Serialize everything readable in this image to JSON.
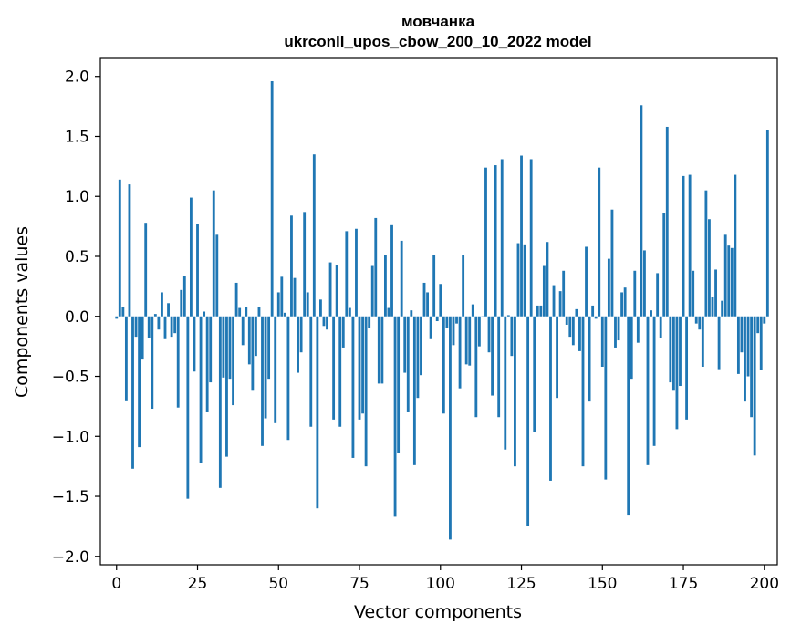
{
  "chart_data": {
    "type": "bar",
    "title_line1": "мовчанка",
    "title_line2": "ukrconll_upos_cbow_200_10_2022 model",
    "xlabel": "Vector components",
    "ylabel": "Components values",
    "xlim": [
      -5,
      204
    ],
    "ylim": [
      -2.07,
      2.15
    ],
    "xticks": [
      0,
      25,
      50,
      75,
      100,
      125,
      150,
      175,
      200
    ],
    "xtick_labels": [
      "0",
      "25",
      "50",
      "75",
      "100",
      "125",
      "150",
      "175",
      "200"
    ],
    "yticks": [
      2.0,
      1.5,
      1.0,
      0.5,
      0.0,
      -0.5,
      -1.0,
      -1.5,
      -2.0
    ],
    "ytick_labels": [
      "2.0",
      "1.5",
      "1.0",
      "0.5",
      "0.0",
      "−0.5",
      "−1.0",
      "−1.5",
      "−2.0"
    ],
    "bar_color": "#1f77b4",
    "values": [
      -0.02,
      1.14,
      0.08,
      -0.7,
      1.1,
      -1.27,
      -0.17,
      -1.09,
      -0.36,
      0.78,
      -0.18,
      -0.77,
      0.02,
      -0.11,
      0.2,
      -0.19,
      0.11,
      -0.17,
      -0.14,
      -0.76,
      0.22,
      0.34,
      -1.52,
      0.99,
      -0.46,
      0.77,
      -1.22,
      0.04,
      -0.8,
      -0.55,
      1.05,
      0.68,
      -1.43,
      -0.51,
      -1.17,
      -0.52,
      -0.74,
      0.28,
      0.07,
      -0.24,
      0.08,
      -0.4,
      -0.62,
      -0.33,
      0.08,
      -1.08,
      -0.85,
      -0.52,
      1.96,
      -0.89,
      0.2,
      0.33,
      0.03,
      -1.03,
      0.84,
      0.32,
      -0.47,
      -0.3,
      0.87,
      0.2,
      -0.92,
      1.35,
      -1.6,
      0.14,
      -0.08,
      -0.11,
      0.45,
      -0.86,
      0.43,
      -0.92,
      -0.26,
      0.71,
      0.07,
      -1.18,
      0.73,
      -0.86,
      -0.81,
      -1.25,
      -0.1,
      0.42,
      0.82,
      -0.56,
      -0.56,
      0.51,
      0.07,
      0.76,
      -1.67,
      -1.14,
      0.63,
      -0.47,
      -0.8,
      0.05,
      -1.24,
      -0.68,
      -0.49,
      0.28,
      0.2,
      -0.19,
      0.51,
      -0.04,
      0.27,
      -0.81,
      -0.1,
      -1.86,
      -0.24,
      -0.06,
      -0.6,
      0.51,
      -0.4,
      -0.41,
      0.1,
      -0.84,
      -0.25,
      0.0,
      1.24,
      -0.3,
      -0.66,
      1.26,
      -0.84,
      1.31,
      -1.11,
      0.01,
      -0.33,
      -1.25,
      0.61,
      1.34,
      0.6,
      -1.75,
      1.31,
      -0.96,
      0.09,
      0.09,
      0.42,
      0.62,
      -1.37,
      0.26,
      -0.68,
      0.21,
      0.38,
      -0.07,
      -0.17,
      -0.24,
      0.06,
      -0.29,
      -1.25,
      0.58,
      -0.71,
      0.09,
      -0.02,
      1.24,
      -0.42,
      -1.36,
      0.48,
      0.89,
      -0.26,
      -0.2,
      0.2,
      0.24,
      -1.66,
      -0.52,
      0.38,
      -0.22,
      1.76,
      0.55,
      -1.24,
      0.05,
      -1.08,
      0.36,
      -0.18,
      0.86,
      1.58,
      -0.55,
      -0.62,
      -0.94,
      -0.58,
      1.17,
      -0.86,
      1.18,
      0.38,
      -0.06,
      -0.11,
      -0.42,
      1.05,
      0.81,
      0.16,
      0.39,
      -0.44,
      0.13,
      0.68,
      0.59,
      0.57,
      1.18,
      -0.48,
      -0.3,
      -0.71,
      -0.5,
      -0.84,
      -1.16,
      -0.14,
      -0.45,
      -0.06,
      1.55
    ]
  }
}
